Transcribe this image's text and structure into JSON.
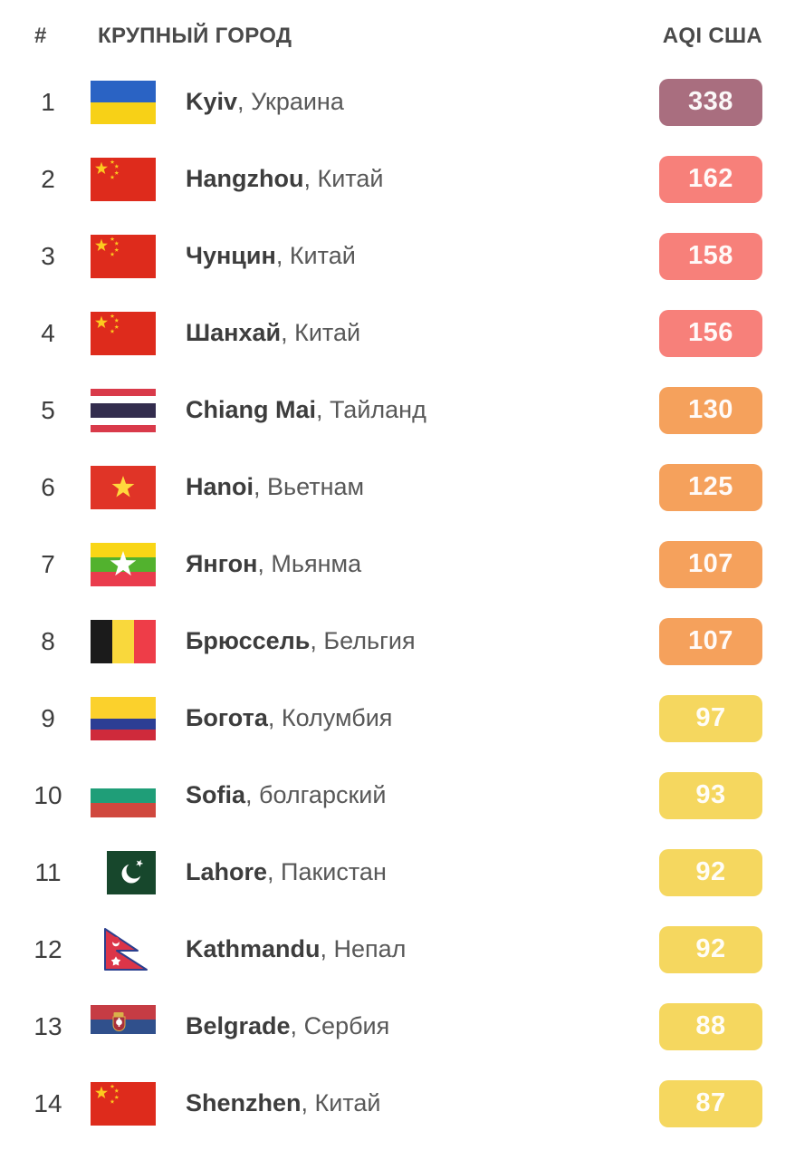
{
  "header": {
    "rank": "#",
    "city": "КРУПНЫЙ ГОРОД",
    "aqi": "AQI США"
  },
  "list": {
    "separator": ", "
  },
  "aqi_levels": {
    "hazardous": "#a96e7f",
    "unhealthy": "#f7807a",
    "unhealthy_sensitive": "#f5a15c",
    "moderate": "#f5d75f"
  },
  "badge_text_color": "#ffffff",
  "rows": [
    {
      "rank": "1",
      "flag": "ukraine",
      "city": "Kyiv",
      "country": "Украина",
      "aqi": "338",
      "level": "hazardous"
    },
    {
      "rank": "2",
      "flag": "china",
      "city": "Hangzhou",
      "country": "Китай",
      "aqi": "162",
      "level": "unhealthy"
    },
    {
      "rank": "3",
      "flag": "china",
      "city": "Чунцин",
      "country": "Китай",
      "aqi": "158",
      "level": "unhealthy"
    },
    {
      "rank": "4",
      "flag": "china",
      "city": "Шанхай",
      "country": "Китай",
      "aqi": "156",
      "level": "unhealthy"
    },
    {
      "rank": "5",
      "flag": "thailand",
      "city": "Chiang Mai",
      "country": "Тайланд",
      "aqi": "130",
      "level": "unhealthy_sensitive"
    },
    {
      "rank": "6",
      "flag": "vietnam",
      "city": "Hanoi",
      "country": "Вьетнам",
      "aqi": "125",
      "level": "unhealthy_sensitive"
    },
    {
      "rank": "7",
      "flag": "myanmar",
      "city": "Янгон",
      "country": "Мьянма",
      "aqi": "107",
      "level": "unhealthy_sensitive"
    },
    {
      "rank": "8",
      "flag": "belgium",
      "city": "Брюссель",
      "country": "Бельгия",
      "aqi": "107",
      "level": "unhealthy_sensitive"
    },
    {
      "rank": "9",
      "flag": "colombia",
      "city": "Богота",
      "country": "Колумбия",
      "aqi": "97",
      "level": "moderate"
    },
    {
      "rank": "10",
      "flag": "bulgaria",
      "city": "Sofia",
      "country": "болгарский",
      "aqi": "93",
      "level": "moderate"
    },
    {
      "rank": "11",
      "flag": "pakistan",
      "city": "Lahore",
      "country": "Пакистан",
      "aqi": "92",
      "level": "moderate"
    },
    {
      "rank": "12",
      "flag": "nepal",
      "city": "Kathmandu",
      "country": "Непал",
      "aqi": "92",
      "level": "moderate"
    },
    {
      "rank": "13",
      "flag": "serbia",
      "city": "Belgrade",
      "country": "Сербия",
      "aqi": "88",
      "level": "moderate"
    },
    {
      "rank": "14",
      "flag": "china",
      "city": "Shenzhen",
      "country": "Китай",
      "aqi": "87",
      "level": "moderate"
    }
  ]
}
